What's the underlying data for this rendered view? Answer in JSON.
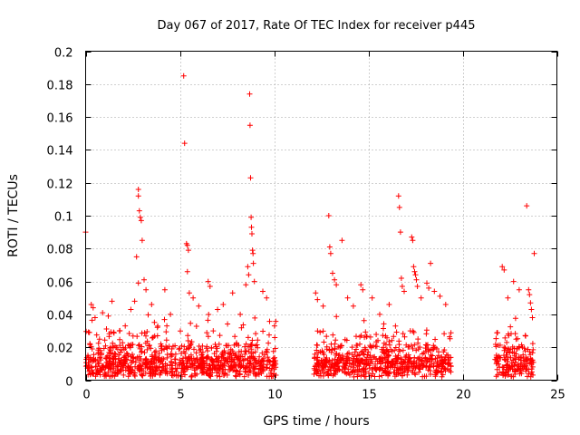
{
  "chart_data": {
    "type": "scatter",
    "title": "Day 067 of 2017, Rate Of TEC Index for receiver p445",
    "xlabel": "GPS time / hours",
    "ylabel": "ROTI / TECUs",
    "xlim": [
      0,
      25
    ],
    "ylim": [
      0,
      0.2
    ],
    "xticks": [
      "0",
      "5",
      "10",
      "15",
      "20",
      "25"
    ],
    "yticks": [
      "0",
      "0.02",
      "0.04",
      "0.06",
      "0.08",
      "0.1",
      "0.12",
      "0.14",
      "0.16",
      "0.18",
      "0.2"
    ],
    "grid": true,
    "marker": "+",
    "color": "#ff0000",
    "observation_windows": [
      [
        0,
        10.1
      ],
      [
        12.1,
        19.4
      ],
      [
        21.7,
        23.8
      ]
    ],
    "series": [
      {
        "points": [
          [
            0.0,
            0.09
          ],
          [
            0.2,
            0.029
          ],
          [
            0.3,
            0.046
          ],
          [
            0.4,
            0.044
          ],
          [
            0.5,
            0.038
          ],
          [
            0.9,
            0.041
          ],
          [
            1.2,
            0.039
          ],
          [
            1.4,
            0.048
          ],
          [
            1.8,
            0.03
          ],
          [
            2.1,
            0.033
          ],
          [
            2.4,
            0.043
          ],
          [
            2.6,
            0.048
          ],
          [
            2.7,
            0.075
          ],
          [
            2.8,
            0.116
          ],
          [
            2.8,
            0.112
          ],
          [
            2.85,
            0.103
          ],
          [
            2.9,
            0.099
          ],
          [
            2.95,
            0.097
          ],
          [
            2.8,
            0.059
          ],
          [
            3.0,
            0.085
          ],
          [
            3.1,
            0.061
          ],
          [
            3.2,
            0.055
          ],
          [
            3.5,
            0.046
          ],
          [
            4.2,
            0.055
          ],
          [
            4.5,
            0.04
          ],
          [
            5.2,
            0.185
          ],
          [
            5.25,
            0.144
          ],
          [
            5.35,
            0.083
          ],
          [
            5.4,
            0.082
          ],
          [
            5.45,
            0.079
          ],
          [
            5.4,
            0.066
          ],
          [
            5.5,
            0.053
          ],
          [
            5.7,
            0.05
          ],
          [
            6.0,
            0.045
          ],
          [
            6.5,
            0.06
          ],
          [
            6.6,
            0.057
          ],
          [
            7.0,
            0.043
          ],
          [
            7.3,
            0.046
          ],
          [
            7.8,
            0.053
          ],
          [
            8.2,
            0.04
          ],
          [
            8.5,
            0.058
          ],
          [
            8.7,
            0.174
          ],
          [
            8.72,
            0.155
          ],
          [
            8.75,
            0.123
          ],
          [
            8.78,
            0.099
          ],
          [
            8.8,
            0.093
          ],
          [
            8.82,
            0.089
          ],
          [
            8.85,
            0.079
          ],
          [
            8.88,
            0.077
          ],
          [
            8.9,
            0.071
          ],
          [
            8.6,
            0.069
          ],
          [
            8.65,
            0.064
          ],
          [
            8.95,
            0.06
          ],
          [
            9.4,
            0.054
          ],
          [
            9.6,
            0.05
          ],
          [
            12.2,
            0.053
          ],
          [
            12.3,
            0.049
          ],
          [
            12.6,
            0.045
          ],
          [
            12.9,
            0.1
          ],
          [
            12.95,
            0.081
          ],
          [
            13.0,
            0.077
          ],
          [
            13.1,
            0.065
          ],
          [
            13.2,
            0.061
          ],
          [
            13.3,
            0.058
          ],
          [
            13.6,
            0.085
          ],
          [
            13.9,
            0.05
          ],
          [
            14.2,
            0.045
          ],
          [
            14.6,
            0.058
          ],
          [
            14.7,
            0.055
          ],
          [
            15.2,
            0.05
          ],
          [
            15.6,
            0.04
          ],
          [
            16.1,
            0.046
          ],
          [
            16.6,
            0.112
          ],
          [
            16.65,
            0.105
          ],
          [
            16.7,
            0.09
          ],
          [
            16.75,
            0.062
          ],
          [
            16.8,
            0.057
          ],
          [
            16.9,
            0.054
          ],
          [
            17.3,
            0.087
          ],
          [
            17.35,
            0.085
          ],
          [
            17.4,
            0.069
          ],
          [
            17.45,
            0.066
          ],
          [
            17.5,
            0.064
          ],
          [
            17.55,
            0.061
          ],
          [
            17.6,
            0.057
          ],
          [
            17.8,
            0.05
          ],
          [
            18.1,
            0.059
          ],
          [
            18.2,
            0.056
          ],
          [
            18.3,
            0.071
          ],
          [
            18.5,
            0.054
          ],
          [
            18.8,
            0.051
          ],
          [
            19.1,
            0.046
          ],
          [
            22.1,
            0.069
          ],
          [
            22.2,
            0.067
          ],
          [
            22.4,
            0.05
          ],
          [
            22.7,
            0.06
          ],
          [
            23.0,
            0.055
          ],
          [
            23.4,
            0.106
          ],
          [
            23.5,
            0.055
          ],
          [
            23.55,
            0.052
          ],
          [
            23.6,
            0.047
          ],
          [
            23.65,
            0.043
          ],
          [
            23.7,
            0.038
          ],
          [
            23.8,
            0.077
          ]
        ]
      }
    ]
  }
}
